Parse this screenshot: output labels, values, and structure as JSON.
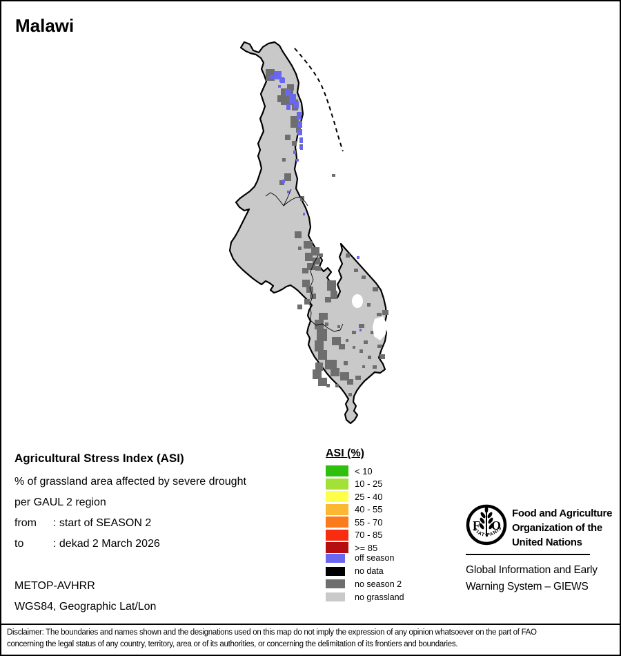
{
  "title": "Malawi",
  "map": {
    "colors": {
      "no_grassland": "#C9C9C9",
      "no_season_2": "#6E6E6E",
      "off_season": "#6966EF",
      "no_data": "#000000",
      "outline": "#000000",
      "water": "#FFFFFF"
    }
  },
  "info_block": {
    "heading": "Agricultural Stress Index (ASI)",
    "line1": "% of grassland area affected by severe drought",
    "line2": "per GAUL 2 region",
    "from_label": "from",
    "from_value": ": start of SEASON 2",
    "to_label": "to",
    "to_value": ": dekad 2 March 2026",
    "sensor": "METOP-AVHRR",
    "projection": "WGS84, Geographic Lat/Lon"
  },
  "legend": {
    "heading": "ASI (%)",
    "asi_classes": [
      {
        "label": "< 10",
        "color": "#2FBF0D"
      },
      {
        "label": "10 - 25",
        "color": "#A3E139"
      },
      {
        "label": "25 - 40",
        "color": "#FFFF4A"
      },
      {
        "label": "40 - 55",
        "color": "#FDB833"
      },
      {
        "label": "55 - 70",
        "color": "#FB7A1C"
      },
      {
        "label": "70 - 85",
        "color": "#FA2C0F"
      },
      {
        "label": ">= 85",
        "color": "#B60D10"
      }
    ],
    "other_classes": [
      {
        "label": "off season",
        "color": "#6966EF"
      },
      {
        "label": "no data",
        "color": "#000000"
      },
      {
        "label": "no season 2",
        "color": "#6E6E6E"
      },
      {
        "label": "no grassland",
        "color": "#C9C9C9"
      }
    ]
  },
  "branding": {
    "logo_letter_left": "F",
    "logo_letter_right": "O",
    "logo_motto": "FIAT·PANIS",
    "org_name_lines": [
      "Food and Agriculture",
      "Organization of the",
      "United Nations"
    ],
    "giews_lines": [
      "Global Information and Early",
      "Warning System – GIEWS"
    ]
  },
  "disclaimer": {
    "line1": "Disclaimer: The boundaries and names shown and the designations used on this map do not imply the expression of any opinion whatsoever on the part of FAO",
    "line2": "concerning the legal status of any country, territory, area or of its authorities, or concerning the delimitation of its frontiers and boundaries."
  }
}
